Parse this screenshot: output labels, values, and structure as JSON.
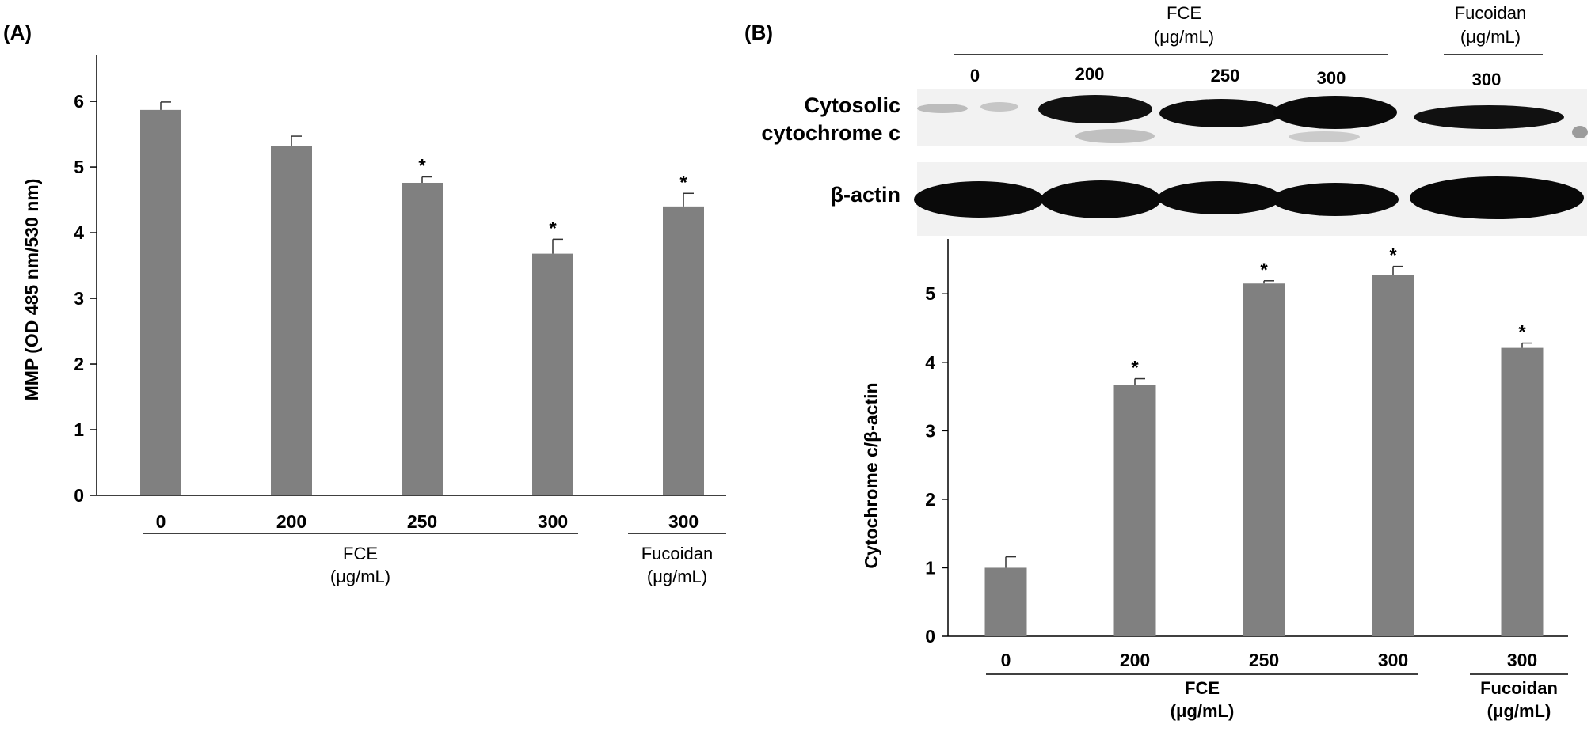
{
  "chart_data": [
    {
      "panel_label": "(A)",
      "type": "bar",
      "ylabel": "MMP (OD 485 nm/530 nm)",
      "ylim": [
        0,
        6.7
      ],
      "yticks": [
        "0",
        "1",
        "2",
        "3",
        "4",
        "5",
        "6"
      ],
      "categories": [
        "0",
        "200",
        "250",
        "300",
        "300"
      ],
      "values": [
        5.87,
        5.32,
        4.76,
        3.68,
        4.4
      ],
      "errors": [
        0.12,
        0.15,
        0.09,
        0.22,
        0.2
      ],
      "significance": [
        "",
        "",
        "*",
        "*",
        "*"
      ],
      "bar_color": "#808080",
      "groups": [
        {
          "label_line1": "FCE",
          "label_line2": "(μg/mL)"
        },
        {
          "label_line1": "Fucoidan",
          "label_line2": "(μg/mL)"
        }
      ]
    },
    {
      "panel_label": "(B)",
      "type": "bar",
      "ylabel": "Cytochrome c/β-actin",
      "ylim": [
        0,
        5.8
      ],
      "yticks": [
        "0",
        "1",
        "2",
        "3",
        "4",
        "5"
      ],
      "categories": [
        "0",
        "200",
        "250",
        "300",
        "300"
      ],
      "values": [
        1.0,
        3.67,
        5.15,
        5.27,
        4.21
      ],
      "errors": [
        0.16,
        0.09,
        0.04,
        0.13,
        0.07
      ],
      "significance": [
        "",
        "*",
        "*",
        "*",
        "*"
      ],
      "bar_color": "#808080",
      "groups": [
        {
          "label_line1": "FCE",
          "label_line2": "(μg/mL)"
        },
        {
          "label_line1": "Fucoidan",
          "label_line2": "(μg/mL)"
        }
      ]
    }
  ],
  "blot": {
    "header_groups": [
      {
        "label_line1": "FCE",
        "label_line2": "(μg/mL)"
      },
      {
        "label_line1": "Fucoidan",
        "label_line2": "(μg/mL)"
      }
    ],
    "lane_labels": [
      "0",
      "200",
      "250",
      "300",
      "300"
    ],
    "rows": [
      {
        "label_line1": "Cytosolic",
        "label_line2": "cytochrome c"
      },
      {
        "label_line1": "β-actin",
        "label_line2": ""
      }
    ]
  }
}
